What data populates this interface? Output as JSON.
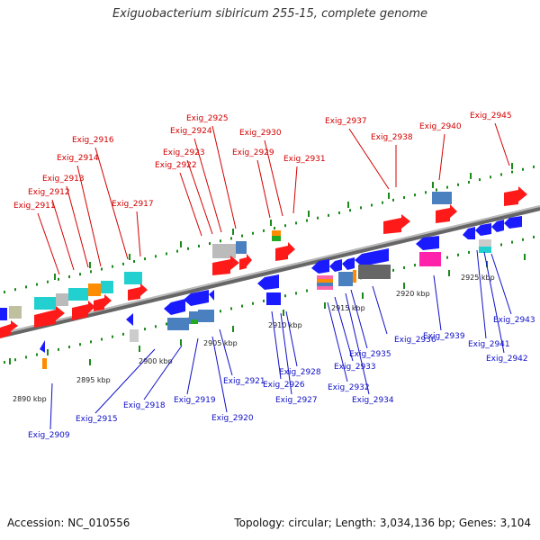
{
  "title": "Exiguobacterium sibiricum 255-15, complete genome",
  "accession_text": "Accession: NC_010556",
  "summary_text": "Topology: circular; Length: 3,034,136 bp; Genes: 3,104",
  "colors": {
    "forward_gene": "#ff1a1a",
    "reverse_gene": "#1a1aff",
    "backbone": "#888888",
    "tick": "#1a8a1a",
    "forward_label": "#d40000",
    "reverse_label": "#1010c8"
  },
  "kbp_labels": [
    "2890 kbp",
    "2895 kbp",
    "2900 kbp",
    "2905 kbp",
    "2910 kbp",
    "2915 kbp",
    "2920 kbp",
    "2925 kbp"
  ],
  "forward_labels": [
    "Exig_2911",
    "Exig_2912",
    "Exig_2913",
    "Exig_2914",
    "Exig_2916",
    "Exig_2917",
    "Exig_2922",
    "Exig_2923",
    "Exig_2924",
    "Exig_2925",
    "Exig_2929",
    "Exig_2930",
    "Exig_2931",
    "Exig_2937",
    "Exig_2938",
    "Exig_2940",
    "Exig_2945"
  ],
  "reverse_labels": [
    "Exig_2909",
    "Exig_2915",
    "Exig_2918",
    "Exig_2919",
    "Exig_2920",
    "Exig_2921",
    "Exig_2926",
    "Exig_2927",
    "Exig_2928",
    "Exig_2932",
    "Exig_2933",
    "Exig_2934",
    "Exig_2935",
    "Exig_2936",
    "Exig_2939",
    "Exig_2941",
    "Exig_2942",
    "Exig_2943"
  ]
}
